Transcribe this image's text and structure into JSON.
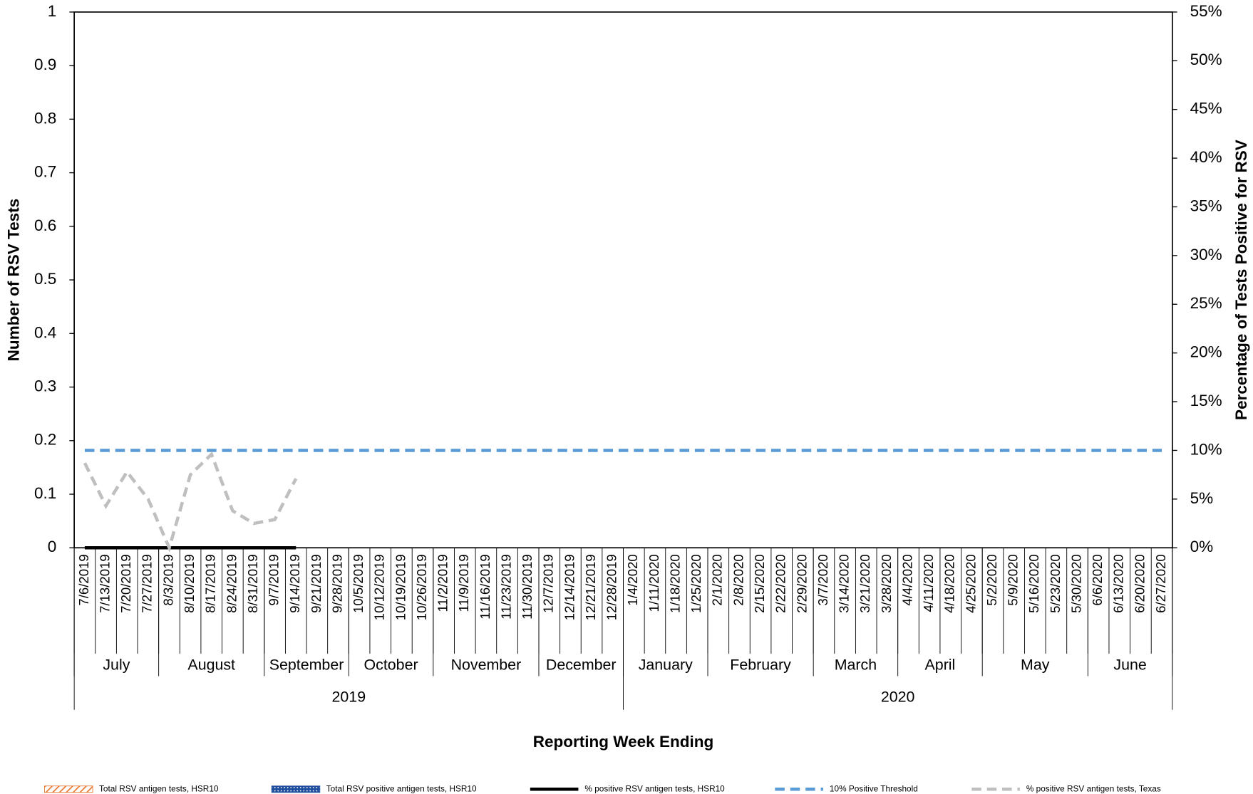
{
  "chart_data": {
    "type": "bar",
    "y_title": "Number of RSV Tests",
    "y2_title": "Percentage of Tests Positive for RSV",
    "x_title": "Reporting Week Ending",
    "categories": [
      "7/6/2019",
      "7/13/2019",
      "7/20/2019",
      "7/27/2019",
      "8/3/2019",
      "8/10/2019",
      "8/17/2019",
      "8/24/2019",
      "8/31/2019",
      "9/7/2019",
      "9/14/2019",
      "9/21/2019",
      "9/28/2019",
      "10/5/2019",
      "10/12/2019",
      "10/19/2019",
      "10/26/2019",
      "11/2/2019",
      "11/9/2019",
      "11/16/2019",
      "11/23/2019",
      "11/30/2019",
      "12/7/2019",
      "12/14/2019",
      "12/21/2019",
      "12/28/2019",
      "1/4/2020",
      "1/11/2020",
      "1/18/2020",
      "1/25/2020",
      "2/1/2020",
      "2/8/2020",
      "2/15/2020",
      "2/22/2020",
      "2/29/2020",
      "3/7/2020",
      "3/14/2020",
      "3/21/2020",
      "3/28/2020",
      "4/4/2020",
      "4/11/2020",
      "4/18/2020",
      "4/25/2020",
      "5/2/2020",
      "5/9/2020",
      "5/16/2020",
      "5/23/2020",
      "5/30/2020",
      "6/6/2020",
      "6/13/2020",
      "6/20/2020",
      "6/27/2020"
    ],
    "months": [
      "July",
      "August",
      "September",
      "October",
      "November",
      "December",
      "January",
      "February",
      "March",
      "April",
      "May",
      "June"
    ],
    "years": [
      "2019",
      "2020"
    ],
    "series": [
      {
        "name": "Total RSV antigen tests, HSR10",
        "type": "bar",
        "color": "#e8772e",
        "pattern": "hatch",
        "values": [
          0,
          0,
          0,
          0,
          0,
          0,
          0,
          0,
          0,
          0,
          0,
          null,
          null,
          null,
          null,
          null,
          null,
          null,
          null,
          null,
          null,
          null,
          null,
          null,
          null,
          null,
          null,
          null,
          null,
          null,
          null,
          null,
          null,
          null,
          null,
          null,
          null,
          null,
          null,
          null,
          null,
          null,
          null,
          null,
          null,
          null,
          null,
          null,
          null,
          null,
          null,
          null
        ]
      },
      {
        "name": "Total RSV positive antigen tests, HSR10",
        "type": "bar",
        "color": "#1f4e9c",
        "pattern": "dots",
        "values": [
          0,
          0,
          0,
          0,
          0,
          0,
          0,
          0,
          0,
          0,
          0,
          null,
          null,
          null,
          null,
          null,
          null,
          null,
          null,
          null,
          null,
          null,
          null,
          null,
          null,
          null,
          null,
          null,
          null,
          null,
          null,
          null,
          null,
          null,
          null,
          null,
          null,
          null,
          null,
          null,
          null,
          null,
          null,
          null,
          null,
          null,
          null,
          null,
          null,
          null,
          null,
          null
        ]
      },
      {
        "name": "% positive RSV antigen tests, HSR10",
        "type": "line",
        "axis": "y2",
        "color": "#000000",
        "dashed": false,
        "values": [
          0,
          0,
          0,
          0,
          0,
          0,
          0,
          0,
          0,
          0,
          0,
          null,
          null,
          null,
          null,
          null,
          null,
          null,
          null,
          null,
          null,
          null,
          null,
          null,
          null,
          null,
          null,
          null,
          null,
          null,
          null,
          null,
          null,
          null,
          null,
          null,
          null,
          null,
          null,
          null,
          null,
          null,
          null,
          null,
          null,
          null,
          null,
          null,
          null,
          null,
          null,
          null
        ]
      },
      {
        "name": "10% Positive Threshold",
        "type": "line",
        "axis": "y2",
        "color": "#5b9bd5",
        "dashed": true,
        "values": [
          10,
          10,
          10,
          10,
          10,
          10,
          10,
          10,
          10,
          10,
          10,
          10,
          10,
          10,
          10,
          10,
          10,
          10,
          10,
          10,
          10,
          10,
          10,
          10,
          10,
          10,
          10,
          10,
          10,
          10,
          10,
          10,
          10,
          10,
          10,
          10,
          10,
          10,
          10,
          10,
          10,
          10,
          10,
          10,
          10,
          10,
          10,
          10,
          10,
          10,
          10,
          10
        ]
      },
      {
        "name": "% positive RSV antigen tests, Texas",
        "type": "line",
        "axis": "y2",
        "color": "#bfbfbf",
        "dashed": true,
        "values": [
          8.7,
          4.3,
          7.8,
          5,
          0,
          7.5,
          9.6,
          3.8,
          2.5,
          2.9,
          7.1,
          null,
          null,
          null,
          null,
          null,
          null,
          null,
          null,
          null,
          null,
          null,
          null,
          null,
          null,
          null,
          null,
          null,
          null,
          null,
          null,
          null,
          null,
          null,
          null,
          null,
          null,
          null,
          null,
          null,
          null,
          null,
          null,
          null,
          null,
          null,
          null,
          null,
          null,
          null,
          null,
          null
        ]
      }
    ],
    "ylim": [
      0,
      1
    ],
    "yticks": [
      0,
      0.1,
      0.2,
      0.3,
      0.4,
      0.5,
      0.6,
      0.7,
      0.8,
      0.9,
      1
    ],
    "y2lim": [
      0,
      55
    ],
    "y2ticks": [
      {
        "value": 0,
        "label": "0%"
      },
      {
        "value": 5,
        "label": "5%"
      },
      {
        "value": 10,
        "label": "10%"
      },
      {
        "value": 15,
        "label": "15%"
      },
      {
        "value": 20,
        "label": "20%"
      },
      {
        "value": 25,
        "label": "25%"
      },
      {
        "value": 30,
        "label": "30%"
      },
      {
        "value": 35,
        "label": "35%"
      },
      {
        "value": 40,
        "label": "40%"
      },
      {
        "value": 45,
        "label": "45%"
      },
      {
        "value": 50,
        "label": "50%"
      },
      {
        "value": 55,
        "label": "55%"
      }
    ],
    "grid": false,
    "legend": "bottom"
  }
}
